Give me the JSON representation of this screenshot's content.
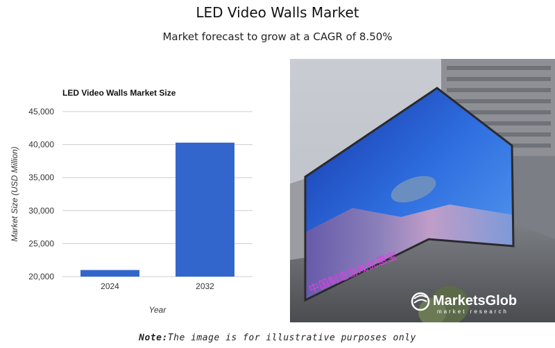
{
  "header": {
    "title": "LED Video Walls Market",
    "subtitle": "Market forecast to grow at a CAGR of 8.50%"
  },
  "chart_data": {
    "type": "bar",
    "title": "LED Video Walls Market Size",
    "xlabel": "Year",
    "ylabel": "Market Size (USD Million)",
    "categories": [
      "2024",
      "2032"
    ],
    "values": [
      21000,
      40300
    ],
    "ylim": [
      20000,
      45000
    ],
    "yticks": [
      "20,000",
      "25,000",
      "30,000",
      "35,000",
      "40,000",
      "45,000"
    ],
    "bar_color": "#3366cc",
    "grid": true
  },
  "image": {
    "description_icon": "led-video-wall-photo",
    "logo_text": "MarketsGlob",
    "logo_subtext": "market research",
    "screen_text": "中国制造游戏优惠宝"
  },
  "footer": {
    "note_label": "Note:",
    "note_text": "The image is for illustrative purposes only"
  }
}
